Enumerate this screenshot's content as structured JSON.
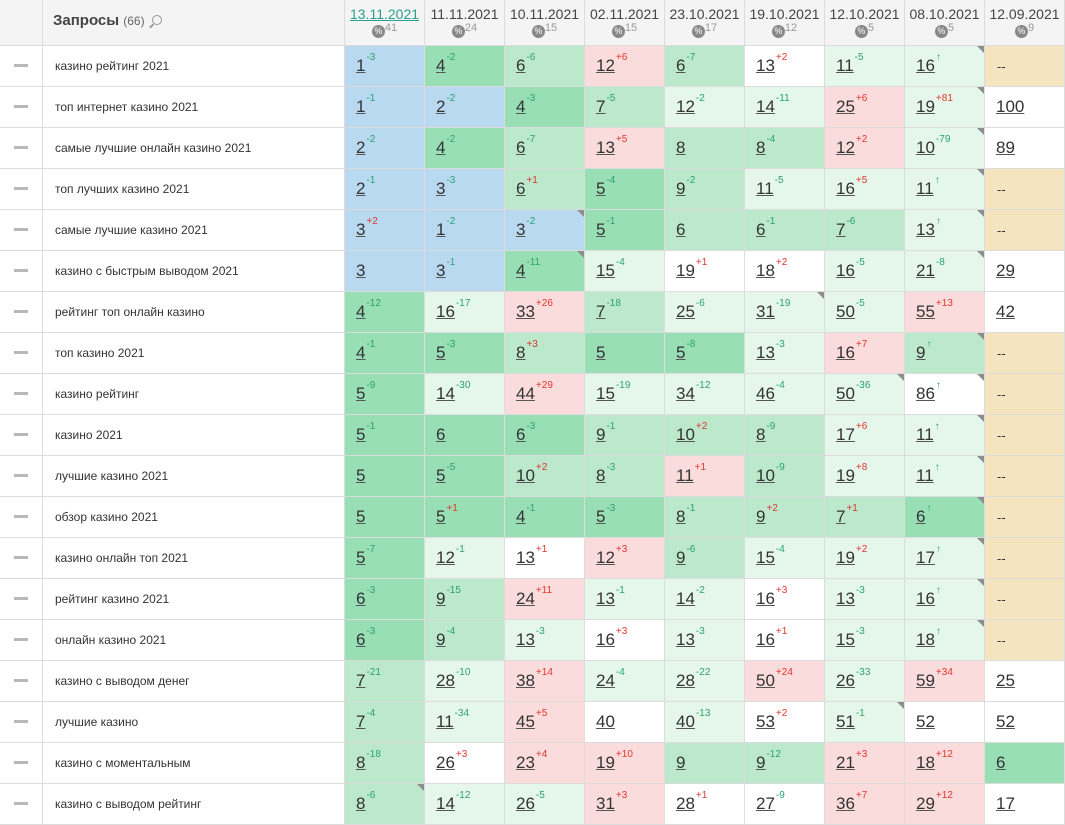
{
  "header": {
    "title": "Запросы",
    "count": "(66)",
    "dates": [
      {
        "date": "13.11.2021",
        "count": "41",
        "active": true
      },
      {
        "date": "11.11.2021",
        "count": "24"
      },
      {
        "date": "10.11.2021",
        "count": "15"
      },
      {
        "date": "02.11.2021",
        "count": "15"
      },
      {
        "date": "23.10.2021",
        "count": "17"
      },
      {
        "date": "19.10.2021",
        "count": "12"
      },
      {
        "date": "12.10.2021",
        "count": "5"
      },
      {
        "date": "08.10.2021",
        "count": "5"
      },
      {
        "date": "12.09.2021",
        "count": "9"
      }
    ],
    "pct_icon": "percent-icon"
  },
  "colors": {
    "top3_blue": "#b9d9f1",
    "top5_green": "#99dfb6",
    "top10_green": "#bce9cc",
    "top30_green": "#e5f7eb",
    "drop_red": "#fbdcdc",
    "no_data_yellow": "#f4e4c0",
    "delta_up": "#28a36c",
    "delta_down": "#e2342b",
    "active_date": "#2aa08e"
  },
  "rows": [
    {
      "query": "казино рейтинг 2021",
      "cells": [
        [
          "1",
          "-3",
          "b1",
          0
        ],
        [
          "4",
          "-2",
          "b2",
          0
        ],
        [
          "6",
          "-6",
          "b3",
          0
        ],
        [
          "12",
          "+6",
          "r",
          0
        ],
        [
          "6",
          "-7",
          "b3",
          0
        ],
        [
          "13",
          "+2",
          "w",
          0
        ],
        [
          "11",
          "-5",
          "b4",
          0
        ],
        [
          "16",
          "↑",
          "b4",
          1
        ],
        [
          "--",
          "",
          "y",
          0
        ]
      ]
    },
    {
      "query": "топ интернет казино 2021",
      "cells": [
        [
          "1",
          "-1",
          "b1",
          0
        ],
        [
          "2",
          "-2",
          "b1",
          0
        ],
        [
          "4",
          "-3",
          "b2",
          0
        ],
        [
          "7",
          "-5",
          "b3",
          0
        ],
        [
          "12",
          "-2",
          "b4",
          0
        ],
        [
          "14",
          "-11",
          "b4",
          0
        ],
        [
          "25",
          "+6",
          "r",
          0
        ],
        [
          "19",
          "+81",
          "b4",
          1
        ],
        [
          "100",
          "",
          "w",
          0
        ]
      ]
    },
    {
      "query": "самые лучшие онлайн казино 2021",
      "cells": [
        [
          "2",
          "-2",
          "b1",
          0
        ],
        [
          "4",
          "-2",
          "b2",
          0
        ],
        [
          "6",
          "-7",
          "b3",
          0
        ],
        [
          "13",
          "+5",
          "r",
          0
        ],
        [
          "8",
          "",
          "b3",
          0
        ],
        [
          "8",
          "-4",
          "b3",
          0
        ],
        [
          "12",
          "+2",
          "r",
          0
        ],
        [
          "10",
          "-79",
          "b4",
          1
        ],
        [
          "89",
          "",
          "w",
          0
        ]
      ]
    },
    {
      "query": "топ лучших казино 2021",
      "cells": [
        [
          "2",
          "-1",
          "b1",
          0
        ],
        [
          "3",
          "-3",
          "b1",
          0
        ],
        [
          "6",
          "+1",
          "b3",
          0
        ],
        [
          "5",
          "-4",
          "b2",
          0
        ],
        [
          "9",
          "-2",
          "b3",
          0
        ],
        [
          "11",
          "-5",
          "b4",
          0
        ],
        [
          "16",
          "+5",
          "b4",
          0
        ],
        [
          "11",
          "↑",
          "b4",
          1
        ],
        [
          "--",
          "",
          "y",
          0
        ]
      ]
    },
    {
      "query": "самые лучшие казино 2021",
      "cells": [
        [
          "3",
          "+2",
          "b1",
          0
        ],
        [
          "1",
          "-2",
          "b1",
          0
        ],
        [
          "3",
          "-2",
          "b1",
          1
        ],
        [
          "5",
          "-1",
          "b2",
          0
        ],
        [
          "6",
          "",
          "b3",
          0
        ],
        [
          "6",
          "-1",
          "b3",
          0
        ],
        [
          "7",
          "-6",
          "b3",
          0
        ],
        [
          "13",
          "↑",
          "b4",
          1
        ],
        [
          "--",
          "",
          "y",
          0
        ]
      ]
    },
    {
      "query": "казино с быстрым выводом 2021",
      "cells": [
        [
          "3",
          "",
          "b1",
          0
        ],
        [
          "3",
          "-1",
          "b1",
          0
        ],
        [
          "4",
          "-11",
          "b2",
          1
        ],
        [
          "15",
          "-4",
          "b4",
          0
        ],
        [
          "19",
          "+1",
          "w",
          0
        ],
        [
          "18",
          "+2",
          "w",
          0
        ],
        [
          "16",
          "-5",
          "b4",
          0
        ],
        [
          "21",
          "-8",
          "b4",
          1
        ],
        [
          "29",
          "",
          "w",
          0
        ]
      ]
    },
    {
      "query": "рейтинг топ онлайн казино",
      "cells": [
        [
          "4",
          "-12",
          "b2",
          0
        ],
        [
          "16",
          "-17",
          "b4",
          0
        ],
        [
          "33",
          "+26",
          "r",
          0
        ],
        [
          "7",
          "-18",
          "b3",
          0
        ],
        [
          "25",
          "-6",
          "b4",
          0
        ],
        [
          "31",
          "-19",
          "b4",
          1
        ],
        [
          "50",
          "-5",
          "b4",
          0
        ],
        [
          "55",
          "+13",
          "r",
          0
        ],
        [
          "42",
          "",
          "w",
          0
        ]
      ]
    },
    {
      "query": "топ казино 2021",
      "cells": [
        [
          "4",
          "-1",
          "b2",
          0
        ],
        [
          "5",
          "-3",
          "b2",
          0
        ],
        [
          "8",
          "+3",
          "b3",
          0
        ],
        [
          "5",
          "",
          "b2",
          0
        ],
        [
          "5",
          "-8",
          "b2",
          0
        ],
        [
          "13",
          "-3",
          "b4",
          0
        ],
        [
          "16",
          "+7",
          "r",
          0
        ],
        [
          "9",
          "↑",
          "b3",
          1
        ],
        [
          "--",
          "",
          "y",
          0
        ]
      ]
    },
    {
      "query": "казино рейтинг",
      "cells": [
        [
          "5",
          "-9",
          "b2",
          0
        ],
        [
          "14",
          "-30",
          "b4",
          0
        ],
        [
          "44",
          "+29",
          "r",
          0
        ],
        [
          "15",
          "-19",
          "b4",
          0
        ],
        [
          "34",
          "-12",
          "b4",
          0
        ],
        [
          "46",
          "-4",
          "b4",
          0
        ],
        [
          "50",
          "-36",
          "b4",
          1
        ],
        [
          "86",
          "↑",
          "w",
          1
        ],
        [
          "--",
          "",
          "y",
          0
        ]
      ]
    },
    {
      "query": "казино 2021",
      "cells": [
        [
          "5",
          "-1",
          "b2",
          0
        ],
        [
          "6",
          "",
          "b2",
          0
        ],
        [
          "6",
          "-3",
          "b2",
          0
        ],
        [
          "9",
          "-1",
          "b3",
          0
        ],
        [
          "10",
          "+2",
          "b3",
          0
        ],
        [
          "8",
          "-9",
          "b3",
          0
        ],
        [
          "17",
          "+6",
          "b4",
          0
        ],
        [
          "11",
          "↑",
          "b4",
          1
        ],
        [
          "--",
          "",
          "y",
          0
        ]
      ]
    },
    {
      "query": "лучшие казино 2021",
      "cells": [
        [
          "5",
          "",
          "b2",
          0
        ],
        [
          "5",
          "-5",
          "b2",
          0
        ],
        [
          "10",
          "+2",
          "b3",
          0
        ],
        [
          "8",
          "-3",
          "b3",
          0
        ],
        [
          "11",
          "+1",
          "r",
          0
        ],
        [
          "10",
          "-9",
          "b3",
          0
        ],
        [
          "19",
          "+8",
          "b4",
          0
        ],
        [
          "11",
          "↑",
          "b4",
          1
        ],
        [
          "--",
          "",
          "y",
          0
        ]
      ]
    },
    {
      "query": "обзор казино 2021",
      "cells": [
        [
          "5",
          "",
          "b2",
          0
        ],
        [
          "5",
          "+1",
          "b2",
          0
        ],
        [
          "4",
          "-1",
          "b2",
          0
        ],
        [
          "5",
          "-3",
          "b2",
          0
        ],
        [
          "8",
          "-1",
          "b3",
          0
        ],
        [
          "9",
          "+2",
          "b3",
          0
        ],
        [
          "7",
          "+1",
          "b3",
          0
        ],
        [
          "6",
          "↑",
          "b2",
          1
        ],
        [
          "--",
          "",
          "y",
          0
        ]
      ]
    },
    {
      "query": "казино онлайн топ 2021",
      "cells": [
        [
          "5",
          "-7",
          "b2",
          0
        ],
        [
          "12",
          "-1",
          "b4",
          0
        ],
        [
          "13",
          "+1",
          "w",
          0
        ],
        [
          "12",
          "+3",
          "r",
          0
        ],
        [
          "9",
          "-6",
          "b3",
          0
        ],
        [
          "15",
          "-4",
          "b4",
          0
        ],
        [
          "19",
          "+2",
          "b4",
          0
        ],
        [
          "17",
          "↑",
          "b4",
          1
        ],
        [
          "--",
          "",
          "y",
          0
        ]
      ]
    },
    {
      "query": "рейтинг казино 2021",
      "cells": [
        [
          "6",
          "-3",
          "b2",
          0
        ],
        [
          "9",
          "-15",
          "b3",
          0
        ],
        [
          "24",
          "+11",
          "r",
          0
        ],
        [
          "13",
          "-1",
          "b4",
          0
        ],
        [
          "14",
          "-2",
          "b4",
          0
        ],
        [
          "16",
          "+3",
          "w",
          0
        ],
        [
          "13",
          "-3",
          "b4",
          0
        ],
        [
          "16",
          "↑",
          "b4",
          1
        ],
        [
          "--",
          "",
          "y",
          0
        ]
      ]
    },
    {
      "query": "онлайн казино 2021",
      "cells": [
        [
          "6",
          "-3",
          "b2",
          0
        ],
        [
          "9",
          "-4",
          "b3",
          0
        ],
        [
          "13",
          "-3",
          "b4",
          0
        ],
        [
          "16",
          "+3",
          "w",
          0
        ],
        [
          "13",
          "-3",
          "b4",
          0
        ],
        [
          "16",
          "+1",
          "w",
          0
        ],
        [
          "15",
          "-3",
          "b4",
          0
        ],
        [
          "18",
          "↑",
          "b4",
          1
        ],
        [
          "--",
          "",
          "y",
          0
        ]
      ]
    },
    {
      "query": "казино с выводом денег",
      "cells": [
        [
          "7",
          "-21",
          "b3",
          0
        ],
        [
          "28",
          "-10",
          "b4",
          0
        ],
        [
          "38",
          "+14",
          "r",
          0
        ],
        [
          "24",
          "-4",
          "b4",
          0
        ],
        [
          "28",
          "-22",
          "b4",
          0
        ],
        [
          "50",
          "+24",
          "r",
          0
        ],
        [
          "26",
          "-33",
          "b4",
          0
        ],
        [
          "59",
          "+34",
          "r",
          0
        ],
        [
          "25",
          "",
          "w",
          0
        ]
      ]
    },
    {
      "query": "лучшие казино",
      "cells": [
        [
          "7",
          "-4",
          "b3",
          0
        ],
        [
          "11",
          "-34",
          "b4",
          0
        ],
        [
          "45",
          "+5",
          "r",
          0
        ],
        [
          "40",
          "",
          "w",
          0
        ],
        [
          "40",
          "-13",
          "b4",
          0
        ],
        [
          "53",
          "+2",
          "w",
          0
        ],
        [
          "51",
          "-1",
          "b4",
          1
        ],
        [
          "52",
          "",
          "w",
          0
        ],
        [
          "52",
          "",
          "w",
          0
        ]
      ]
    },
    {
      "query": "казино с моментальным",
      "cells": [
        [
          "8",
          "-18",
          "b3",
          0
        ],
        [
          "26",
          "+3",
          "w",
          0
        ],
        [
          "23",
          "+4",
          "r",
          0
        ],
        [
          "19",
          "+10",
          "r",
          0
        ],
        [
          "9",
          "",
          "b3",
          0
        ],
        [
          "9",
          "-12",
          "b3",
          0
        ],
        [
          "21",
          "+3",
          "r",
          0
        ],
        [
          "18",
          "+12",
          "r",
          0
        ],
        [
          "6",
          "",
          "b2",
          0
        ]
      ]
    },
    {
      "query": "казино с выводом рейтинг",
      "cells": [
        [
          "8",
          "-6",
          "b3",
          1
        ],
        [
          "14",
          "-12",
          "b4",
          0
        ],
        [
          "26",
          "-5",
          "b4",
          0
        ],
        [
          "31",
          "+3",
          "r",
          0
        ],
        [
          "28",
          "+1",
          "w",
          0
        ],
        [
          "27",
          "-9",
          "w",
          0
        ],
        [
          "36",
          "+7",
          "r",
          0
        ],
        [
          "29",
          "+12",
          "r",
          0
        ],
        [
          "17",
          "",
          "w",
          0
        ]
      ]
    }
  ]
}
